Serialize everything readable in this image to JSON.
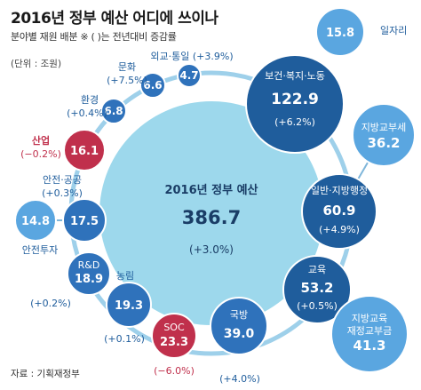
{
  "title": "2016년 정부 예산 어디에 쓰이나",
  "subtitle": "분야별 재원 배분 ※ ( )는 전년대비 증감률",
  "unit_label": "(단위 : 조원)",
  "source": "자료 : 기획재정부",
  "colors": {
    "total": "#9dd8ec",
    "dark_blue": "#1f5d9c",
    "mid_blue": "#2f72bb",
    "light_blue": "#5aa6e0",
    "red": "#c0304c",
    "ring": "#9ed0ea",
    "connector": "#7fb6da",
    "label_blue": "#1f5d9c",
    "label_red": "#c0304c"
  },
  "chart_data": {
    "type": "bubble",
    "title": "2016년 정부 예산 어디에 쓰이나",
    "subtitle": "분야별 재원 배분 ※ ( )는 전년대비 증감률",
    "unit": "(단위 : 조원)",
    "total": {
      "name": "2016년 정부 예산",
      "value": 386.7,
      "change_text": "(+3.0%)",
      "change_pct": 3.0
    },
    "categories": [
      {
        "name": "보건·복지·노동",
        "value": 122.9,
        "change_text": "(+6.2%)",
        "change_pct": 6.2,
        "color": "dark_blue",
        "label_inside": true
      },
      {
        "name": "일반·지방행정",
        "value": 60.9,
        "change_text": "(+4.9%)",
        "change_pct": 4.9,
        "color": "dark_blue",
        "label_inside": true
      },
      {
        "name": "교육",
        "value": 53.2,
        "change_text": "(+0.5%)",
        "change_pct": 0.5,
        "color": "dark_blue",
        "label_inside": true
      },
      {
        "name": "국방",
        "value": 39.0,
        "change_text": "(+4.0%)",
        "change_pct": 4.0,
        "color": "mid_blue",
        "label_inside": true
      },
      {
        "name": "SOC",
        "value": 23.3,
        "change_text": "(−6.0%)",
        "change_pct": -6.0,
        "color": "red",
        "label_inside": true
      },
      {
        "name": "농림",
        "value": 19.3,
        "change_text": "(+0.1%)",
        "change_pct": 0.1,
        "color": "mid_blue",
        "label_inside": false
      },
      {
        "name": "R&D",
        "value": 18.9,
        "change_text": "(+0.2%)",
        "change_pct": 0.2,
        "color": "mid_blue",
        "label_inside": true
      },
      {
        "name": "안전·공공",
        "value": 17.5,
        "change_text": "(+0.3%)",
        "change_pct": 0.3,
        "color": "mid_blue",
        "label_inside": false
      },
      {
        "name": "산업",
        "value": 16.1,
        "change_text": "(−0.2%)",
        "change_pct": -0.2,
        "color": "red",
        "label_inside": false
      },
      {
        "name": "환경",
        "value": 6.8,
        "change_text": "(+0.4%)",
        "change_pct": 0.4,
        "color": "mid_blue",
        "label_inside": false
      },
      {
        "name": "문화",
        "value": 6.6,
        "change_text": "(+7.5%)",
        "change_pct": 7.5,
        "color": "mid_blue",
        "label_inside": false
      },
      {
        "name": "외교·통일",
        "value": 4.7,
        "change_text": "(+3.9%)",
        "change_pct": 3.9,
        "color": "mid_blue",
        "label_inside": false
      }
    ],
    "related": [
      {
        "name": "일자리",
        "value": 15.8
      },
      {
        "name": "지방교부세",
        "value": 36.2
      },
      {
        "name": "지방교육재정교부금",
        "value": 41.3
      },
      {
        "name": "안전투자",
        "value": 14.8
      }
    ]
  }
}
